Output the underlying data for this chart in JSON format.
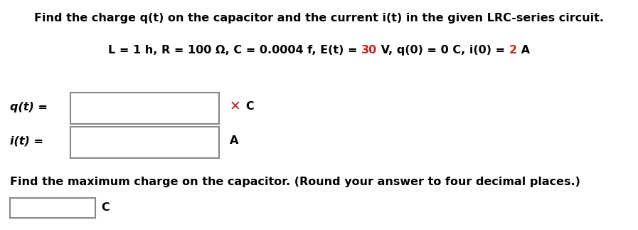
{
  "title": "Find the charge q(t) on the capacitor and the current i(t) in the given LRC-series circuit.",
  "params_segments": [
    [
      "L = 1 h, R = 100 Ω, C = 0.0004 f, E(t) = ",
      "black"
    ],
    [
      "30",
      "red"
    ],
    [
      " V, q(0) = 0 C, i(0) = ",
      "black"
    ],
    [
      "2",
      "red"
    ],
    [
      " A",
      "black"
    ]
  ],
  "qt_label": "q(t) =",
  "qt_unit": "C",
  "it_label": "i(t) =",
  "it_unit": "A",
  "x_mark": "✕",
  "bottom_text": "Find the maximum charge on the capacitor. (Round your answer to four decimal places.)",
  "bottom_unit": "C",
  "box_edge_color": "#888888",
  "x_color": "#cc2222",
  "red_color": "#cc2222",
  "bg_color": "#ffffff",
  "text_color": "#000000",
  "font_size": 11.5
}
